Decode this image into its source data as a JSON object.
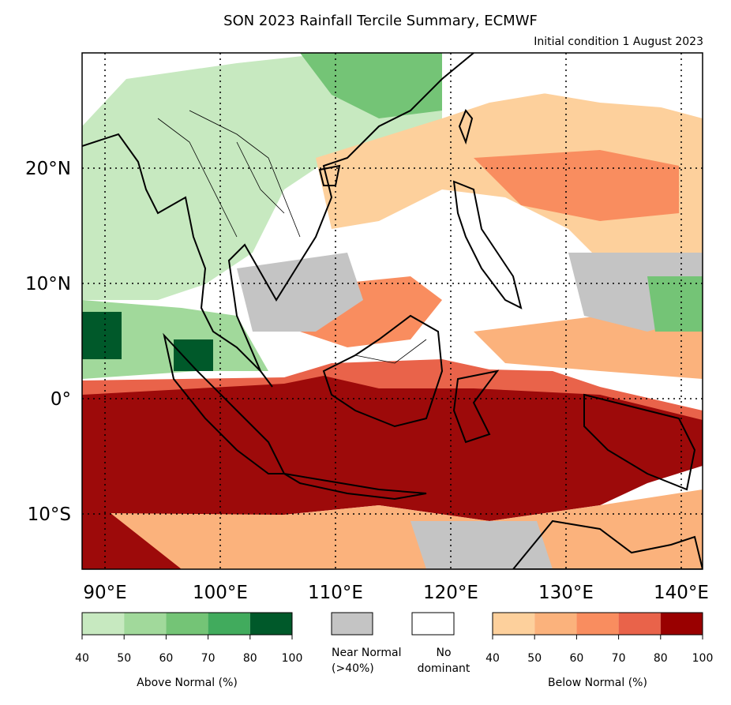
{
  "title": "SON 2023 Rainfall Tercile Summary, ECMWF",
  "subtitle": "Initial condition 1 August 2023",
  "axes": {
    "lon_ticks": [
      "90°E",
      "100°E",
      "110°E",
      "120°E",
      "130°E",
      "140°E"
    ],
    "lat_ticks": [
      "20°N",
      "10°N",
      "0°",
      "10°S"
    ]
  },
  "legend": {
    "above": {
      "label": "Above Normal (%)",
      "ticks": [
        "40",
        "50",
        "60",
        "70",
        "80",
        "100"
      ],
      "colors": [
        "#c7e9c0",
        "#a1d99b",
        "#74c476",
        "#41ab5d",
        "#00592a"
      ]
    },
    "near_normal": {
      "label_line1": "Near Normal",
      "label_line2": "(>40%)",
      "color": "#c4c4c4"
    },
    "no_dominant": {
      "label_line1": "No",
      "label_line2": "dominant",
      "color": "#ffffff"
    },
    "below": {
      "label": "Below Normal (%)",
      "ticks": [
        "40",
        "50",
        "60",
        "70",
        "80",
        "100"
      ],
      "colors": [
        "#fdd09c",
        "#fbb27c",
        "#f98d5f",
        "#e9634a",
        "#990000"
      ]
    }
  }
}
